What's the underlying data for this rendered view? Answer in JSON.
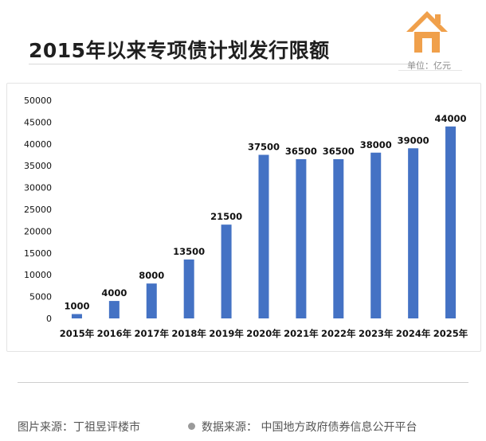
{
  "header": {
    "title": "2015年以来专项债计划发行限额",
    "unit": "单位：亿元"
  },
  "footer": {
    "image_source": "图片来源：丁祖昱评楼市",
    "data_source": "数据来源：   中国地方政府债券信息公开平台"
  },
  "icons": {
    "logo": "house-icon",
    "bullet": "dot-icon"
  },
  "colors": {
    "bar": "#4472c4",
    "logo": "#f0a04b"
  },
  "chart_data": {
    "type": "bar",
    "title": "2015年以来专项债计划发行限额",
    "ylabel": "",
    "xlabel": "",
    "categories": [
      "2015年",
      "2016年",
      "2017年",
      "2018年",
      "2019年",
      "2020年",
      "2021年",
      "2022年",
      "2023年",
      "2024年",
      "2025年"
    ],
    "values": [
      1000,
      4000,
      8000,
      13500,
      21500,
      37500,
      36500,
      36500,
      38000,
      39000,
      44000
    ],
    "data_labels": [
      "1000",
      "4000",
      "8000",
      "13500",
      "21500",
      "37500",
      "36500",
      "36500",
      "38000",
      "39000",
      "44000"
    ],
    "yticks": [
      0,
      5000,
      10000,
      15000,
      20000,
      25000,
      30000,
      35000,
      40000,
      45000,
      50000
    ],
    "ylim": [
      0,
      50000
    ],
    "grid": false,
    "legend": "none"
  }
}
